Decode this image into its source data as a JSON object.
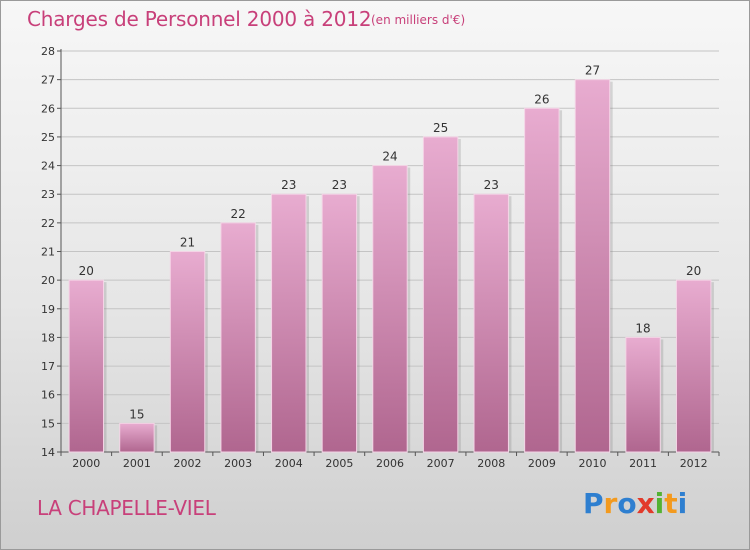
{
  "title": "Charges de Personnel 2000 à 2012",
  "subtitle": "(en milliers d'€)",
  "commune": "LA CHAPELLE-VIEL",
  "logo": {
    "letters": [
      "P",
      "r",
      "o",
      "x",
      "i",
      "t",
      "i"
    ],
    "colors": [
      "#2e7fd0",
      "#f39a1e",
      "#2e7fd0",
      "#e23a2a",
      "#53b233",
      "#f39a1e",
      "#2e7fd0"
    ]
  },
  "colors": {
    "bar_top": "#e8acd0",
    "bar_bottom": "#b0668f",
    "accent": "#c8407a"
  },
  "chart_data": {
    "type": "bar",
    "title": "Charges de Personnel 2000 à 2012",
    "subtitle": "(en milliers d'€)",
    "categories": [
      "2000",
      "2001",
      "2002",
      "2003",
      "2004",
      "2005",
      "2006",
      "2007",
      "2008",
      "2009",
      "2010",
      "2011",
      "2012"
    ],
    "values": [
      20,
      15,
      21,
      22,
      23,
      23,
      24,
      25,
      23,
      26,
      27,
      18,
      20
    ],
    "ylim": [
      14,
      28
    ],
    "yticks": [
      14,
      15,
      16,
      17,
      18,
      19,
      20,
      21,
      22,
      23,
      24,
      25,
      26,
      27,
      28
    ],
    "grid": true,
    "legend": "none"
  }
}
